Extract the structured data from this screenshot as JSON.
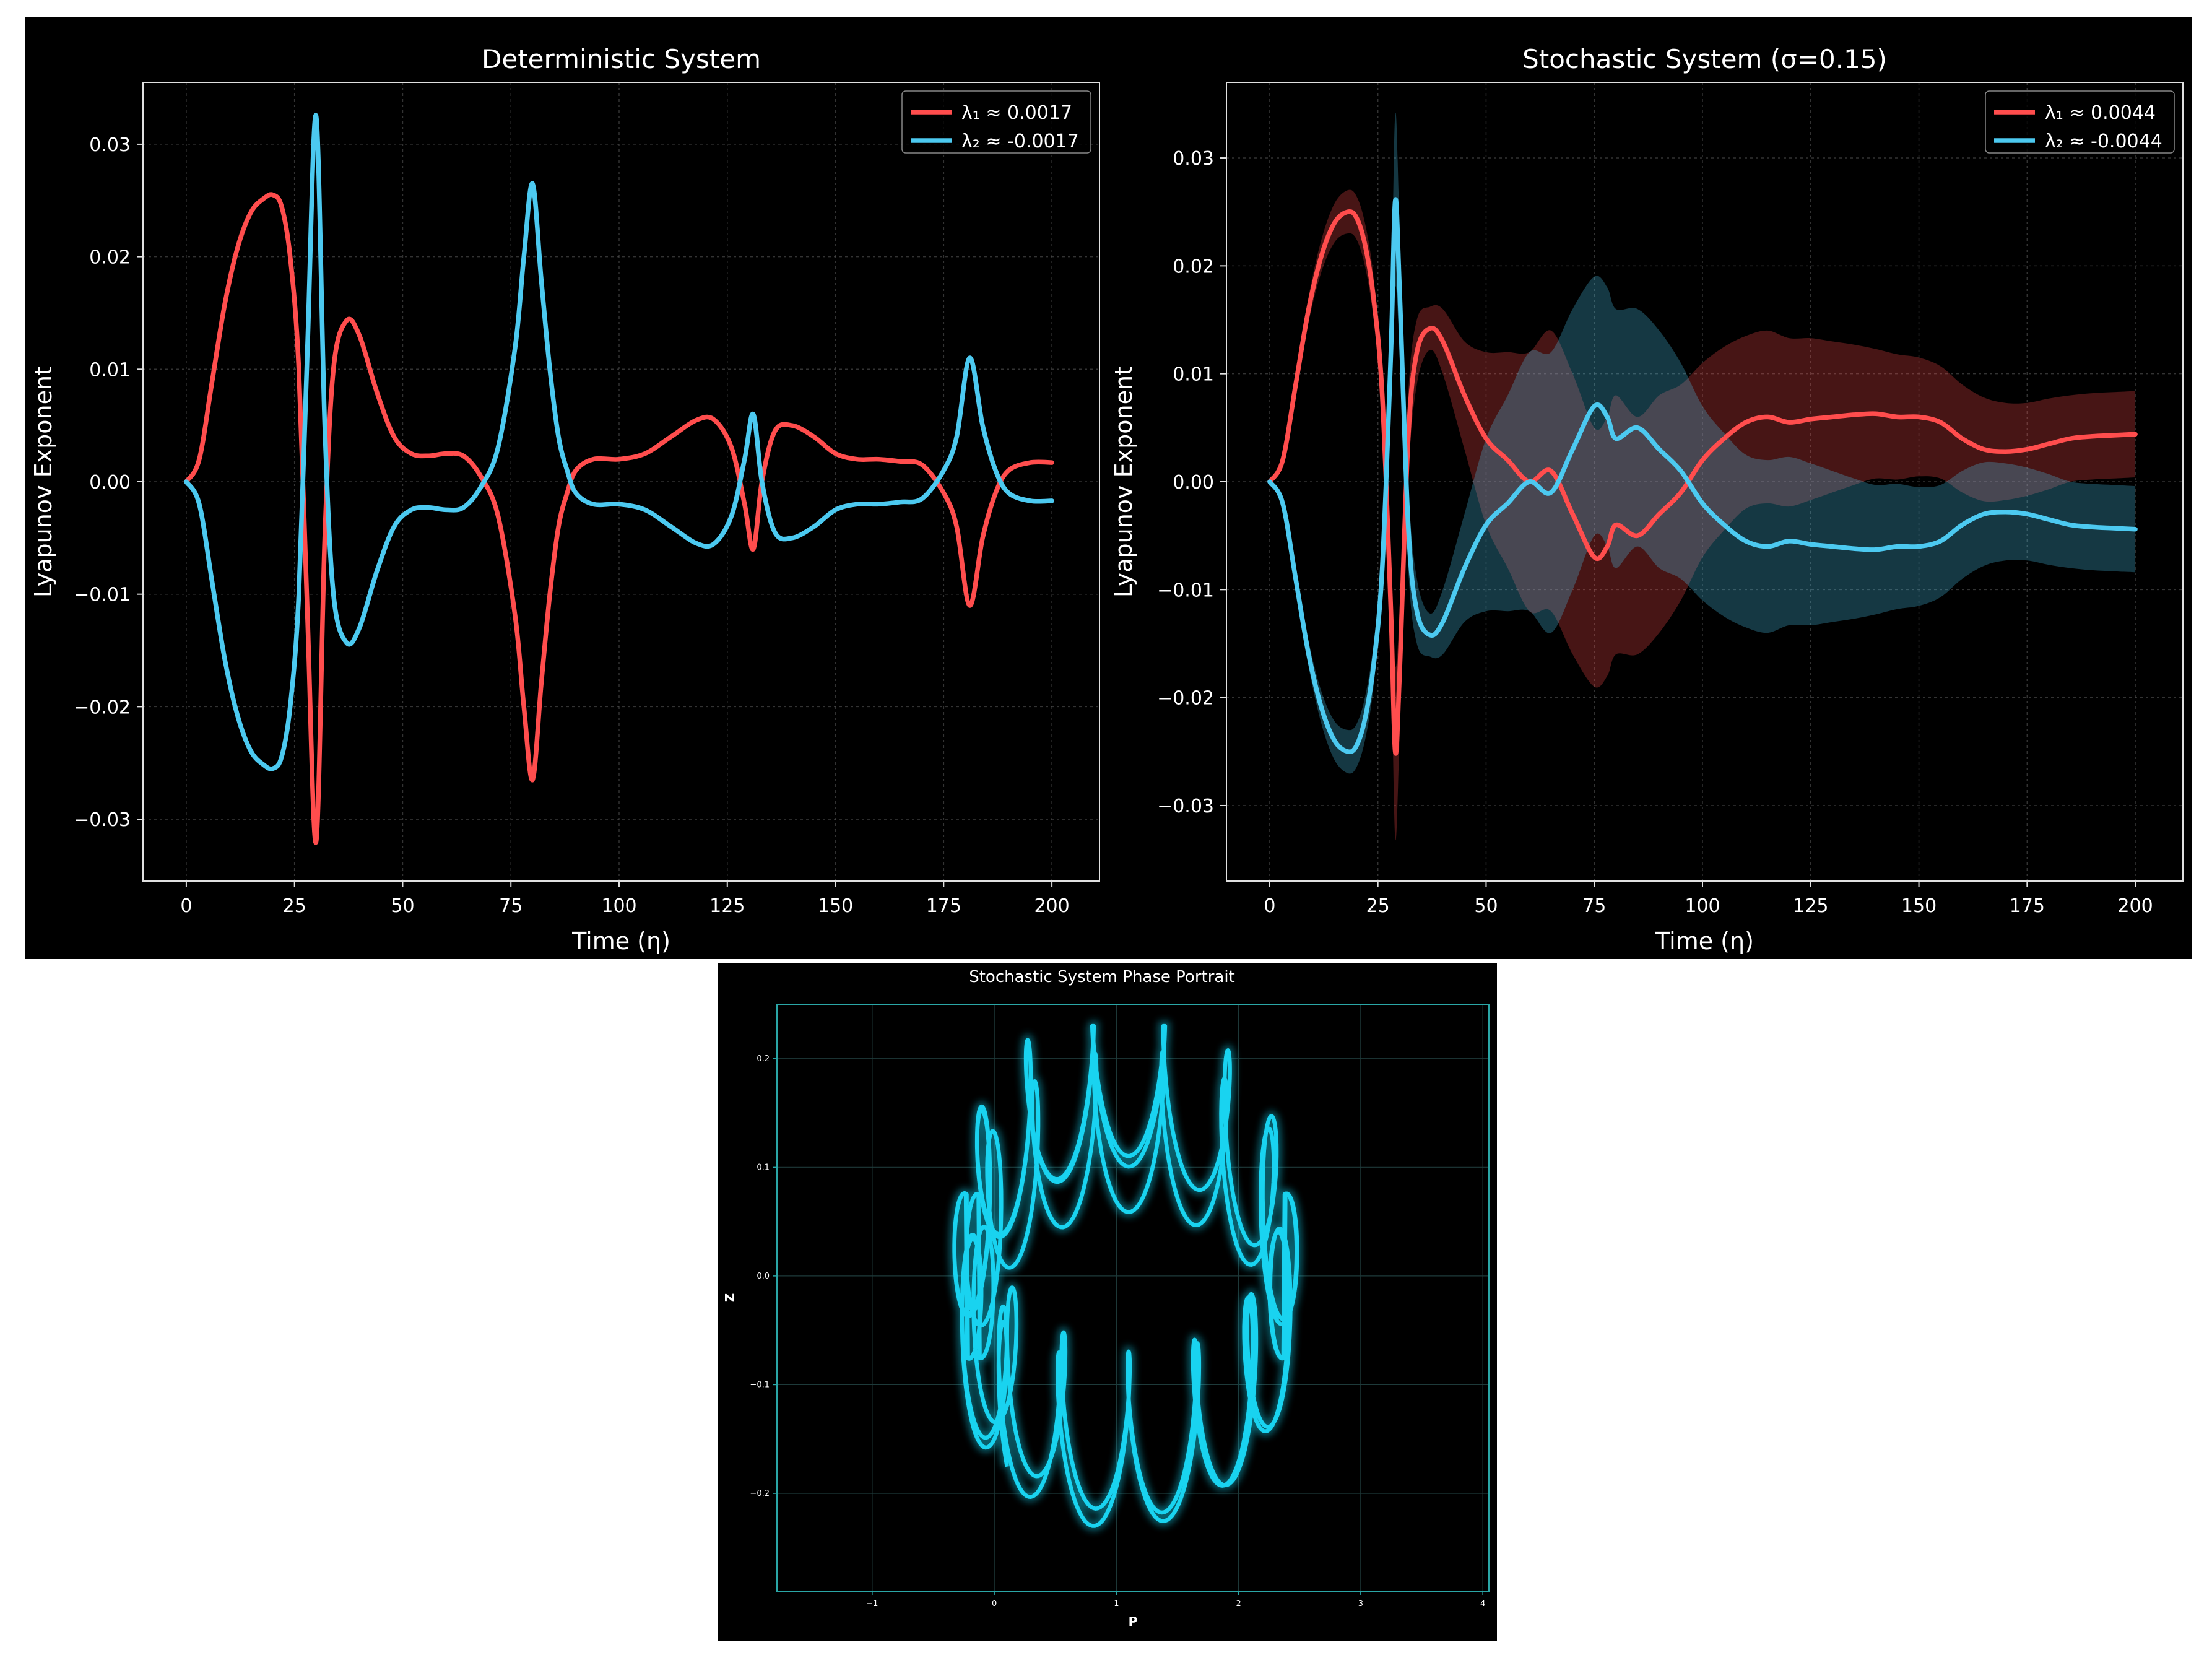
{
  "colors": {
    "lambda1": "#ff4d4d",
    "lambda2": "#4cc9f0",
    "phase": "#19d3f0",
    "background": "#000000",
    "axes": "#d9d9d9",
    "phase_axes": "#2aa6a6"
  },
  "chart_data": [
    {
      "id": "deterministic",
      "type": "line",
      "title": "Deterministic System",
      "xlabel": "Time (η)",
      "ylabel": "Lyapunov Exponent",
      "xlim": [
        -10,
        211
      ],
      "ylim": [
        -0.0355,
        0.0355
      ],
      "xticks": [
        0,
        25,
        50,
        75,
        100,
        125,
        150,
        175,
        200
      ],
      "yticks": [
        -0.03,
        -0.02,
        -0.01,
        0.0,
        0.01,
        0.02,
        0.03
      ],
      "ytick_labels": [
        "−0.03",
        "−0.02",
        "−0.01",
        "0.00",
        "0.01",
        "0.02",
        "0.03"
      ],
      "grid": true,
      "legend_position": "top-right",
      "series": [
        {
          "name": "λ₁ ≈ 0.0017",
          "color": "#ff4d4d",
          "x": [
            0,
            3,
            6,
            9,
            12,
            15,
            18,
            20,
            22,
            24,
            26,
            28,
            30,
            32,
            34,
            37,
            40,
            44,
            48,
            52,
            56,
            60,
            64,
            68,
            72,
            76,
            78,
            80,
            82,
            84,
            86,
            88,
            90,
            94,
            100,
            106,
            112,
            118,
            122,
            126,
            129,
            131,
            133,
            136,
            140,
            145,
            150,
            155,
            160,
            165,
            170,
            175,
            178,
            181,
            184,
            187,
            190,
            195,
            200
          ],
          "y": [
            0,
            0.002,
            0.009,
            0.016,
            0.021,
            0.024,
            0.0252,
            0.0255,
            0.0245,
            0.02,
            0.01,
            -0.012,
            -0.032,
            -0.005,
            0.01,
            0.0143,
            0.013,
            0.008,
            0.004,
            0.0025,
            0.0023,
            0.0025,
            0.0023,
            0.0005,
            -0.003,
            -0.012,
            -0.02,
            -0.0265,
            -0.018,
            -0.01,
            -0.004,
            -0.001,
            0.001,
            0.002,
            0.002,
            0.0025,
            0.004,
            0.0055,
            0.0055,
            0.003,
            -0.002,
            -0.006,
            0,
            0.0045,
            0.005,
            0.004,
            0.0025,
            0.002,
            0.002,
            0.0018,
            0.0015,
            -0.001,
            -0.004,
            -0.011,
            -0.005,
            -0.001,
            0.001,
            0.0017,
            0.0017
          ]
        },
        {
          "name": "λ₂ ≈ -0.0017",
          "color": "#4cc9f0",
          "x": [
            0,
            3,
            6,
            9,
            12,
            15,
            18,
            20,
            22,
            24,
            26,
            28,
            30,
            32,
            34,
            37,
            40,
            44,
            48,
            52,
            56,
            60,
            64,
            68,
            72,
            76,
            78,
            80,
            82,
            84,
            86,
            88,
            90,
            94,
            100,
            106,
            112,
            118,
            122,
            126,
            129,
            131,
            133,
            136,
            140,
            145,
            150,
            155,
            160,
            165,
            170,
            175,
            178,
            181,
            184,
            187,
            190,
            195,
            200
          ],
          "y": [
            0,
            -0.002,
            -0.009,
            -0.016,
            -0.021,
            -0.024,
            -0.0252,
            -0.0255,
            -0.0245,
            -0.02,
            -0.01,
            0.012,
            0.0325,
            0.005,
            -0.01,
            -0.0143,
            -0.013,
            -0.008,
            -0.004,
            -0.0025,
            -0.0023,
            -0.0025,
            -0.0023,
            -0.0005,
            0.003,
            0.012,
            0.02,
            0.0265,
            0.018,
            0.01,
            0.004,
            0.001,
            -0.001,
            -0.002,
            -0.002,
            -0.0025,
            -0.004,
            -0.0055,
            -0.0055,
            -0.003,
            0.002,
            0.006,
            0,
            -0.0045,
            -0.005,
            -0.004,
            -0.0025,
            -0.002,
            -0.002,
            -0.0018,
            -0.0015,
            0.001,
            0.004,
            0.011,
            0.005,
            0.001,
            -0.001,
            -0.0017,
            -0.0017
          ]
        }
      ]
    },
    {
      "id": "stochastic",
      "type": "line",
      "title": "Stochastic System (σ=0.15)",
      "xlabel": "Time (η)",
      "ylabel": "Lyapunov Exponent",
      "xlim": [
        -10,
        211
      ],
      "ylim": [
        -0.037,
        0.037
      ],
      "xticks": [
        0,
        25,
        50,
        75,
        100,
        125,
        150,
        175,
        200
      ],
      "yticks": [
        -0.03,
        -0.02,
        -0.01,
        0.0,
        0.01,
        0.02,
        0.03
      ],
      "ytick_labels": [
        "−0.03",
        "−0.02",
        "−0.01",
        "0.00",
        "0.01",
        "0.02",
        "0.03"
      ],
      "grid": true,
      "legend_position": "top-right",
      "series": [
        {
          "name": "λ₁ ≈ 0.0044",
          "color": "#ff4d4d",
          "x": [
            0,
            3,
            6,
            9,
            12,
            15,
            18,
            20,
            22,
            24,
            26,
            28,
            29,
            30,
            32,
            34,
            37,
            40,
            45,
            50,
            55,
            60,
            65,
            70,
            75,
            78,
            80,
            85,
            90,
            95,
            100,
            105,
            110,
            115,
            120,
            125,
            130,
            135,
            140,
            145,
            150,
            155,
            160,
            165,
            170,
            175,
            180,
            185,
            190,
            195,
            200
          ],
          "y": [
            0,
            0.002,
            0.009,
            0.016,
            0.021,
            0.024,
            0.025,
            0.0245,
            0.022,
            0.017,
            0.008,
            -0.012,
            -0.025,
            -0.018,
            0.004,
            0.012,
            0.0142,
            0.013,
            0.008,
            0.004,
            0.002,
            0.0,
            0.001,
            -0.003,
            -0.007,
            -0.006,
            -0.004,
            -0.005,
            -0.003,
            -0.001,
            0.002,
            0.004,
            0.0055,
            0.006,
            0.0055,
            0.0058,
            0.006,
            0.0062,
            0.0063,
            0.006,
            0.006,
            0.0055,
            0.004,
            0.003,
            0.0028,
            0.003,
            0.0035,
            0.004,
            0.0042,
            0.0043,
            0.0044
          ],
          "band": [
            0,
            0.0005,
            0.001,
            0.0012,
            0.0015,
            0.0018,
            0.002,
            0.002,
            0.002,
            0.002,
            0.002,
            0.004,
            0.008,
            0.006,
            0.004,
            0.003,
            0.002,
            0.003,
            0.005,
            0.008,
            0.01,
            0.012,
            0.013,
            0.013,
            0.012,
            0.012,
            0.012,
            0.011,
            0.011,
            0.01,
            0.009,
            0.0085,
            0.008,
            0.008,
            0.0078,
            0.0075,
            0.007,
            0.0065,
            0.006,
            0.0058,
            0.0055,
            0.0052,
            0.005,
            0.0048,
            0.0045,
            0.0043,
            0.0042,
            0.004,
            0.004,
            0.004,
            0.004
          ]
        },
        {
          "name": "λ₂ ≈ -0.0044",
          "color": "#4cc9f0",
          "x": [
            0,
            3,
            6,
            9,
            12,
            15,
            18,
            20,
            22,
            24,
            26,
            28,
            29,
            30,
            32,
            34,
            37,
            40,
            45,
            50,
            55,
            60,
            65,
            70,
            75,
            78,
            80,
            85,
            90,
            95,
            100,
            105,
            110,
            115,
            120,
            125,
            130,
            135,
            140,
            145,
            150,
            155,
            160,
            165,
            170,
            175,
            180,
            185,
            190,
            195,
            200
          ],
          "y": [
            0,
            -0.002,
            -0.009,
            -0.016,
            -0.021,
            -0.024,
            -0.025,
            -0.0245,
            -0.022,
            -0.017,
            -0.008,
            0.012,
            0.026,
            0.018,
            -0.004,
            -0.012,
            -0.0142,
            -0.013,
            -0.008,
            -0.004,
            -0.002,
            0.0,
            -0.001,
            0.003,
            0.007,
            0.006,
            0.004,
            0.005,
            0.003,
            0.001,
            -0.002,
            -0.004,
            -0.0055,
            -0.006,
            -0.0055,
            -0.0058,
            -0.006,
            -0.0062,
            -0.0063,
            -0.006,
            -0.006,
            -0.0055,
            -0.004,
            -0.003,
            -0.0028,
            -0.003,
            -0.0035,
            -0.004,
            -0.0042,
            -0.0043,
            -0.0044
          ],
          "band": [
            0,
            0.0005,
            0.001,
            0.0012,
            0.0015,
            0.0018,
            0.002,
            0.002,
            0.002,
            0.002,
            0.002,
            0.004,
            0.008,
            0.006,
            0.004,
            0.003,
            0.002,
            0.003,
            0.005,
            0.008,
            0.01,
            0.012,
            0.013,
            0.013,
            0.012,
            0.012,
            0.012,
            0.011,
            0.011,
            0.01,
            0.009,
            0.0085,
            0.008,
            0.008,
            0.0078,
            0.0075,
            0.007,
            0.0065,
            0.006,
            0.0058,
            0.0055,
            0.0052,
            0.005,
            0.0048,
            0.0045,
            0.0043,
            0.0042,
            0.004,
            0.004,
            0.004,
            0.004
          ]
        }
      ]
    },
    {
      "id": "phase",
      "type": "line",
      "title": "Stochastic System Phase Portrait",
      "xlabel": "P",
      "ylabel": "Z",
      "xlim": [
        -1.78,
        4.05
      ],
      "ylim": [
        -0.29,
        0.25
      ],
      "xticks": [
        -1,
        0,
        1,
        2,
        3,
        4
      ],
      "xtick_labels": [
        "−1",
        "0",
        "1",
        "2",
        "3",
        "4"
      ],
      "yticks": [
        -0.2,
        -0.1,
        0.0,
        0.1,
        0.2
      ],
      "ytick_labels": [
        "−0.2",
        "−0.1",
        "0.0",
        "0.1",
        "0.2"
      ],
      "grid": true,
      "series": [
        {
          "color": "#19d3f0",
          "center_p": 1.1,
          "center_z": 0,
          "radius_p": [
            2.45,
            2.65
          ],
          "radius_z": [
            0.19,
            0.08
          ],
          "amp_p": 0.22,
          "amp_z": 0.075,
          "wiggle_freq": 14,
          "turns": 2.4,
          "start_p": 1.15,
          "start_z": 0.2
        }
      ]
    }
  ]
}
